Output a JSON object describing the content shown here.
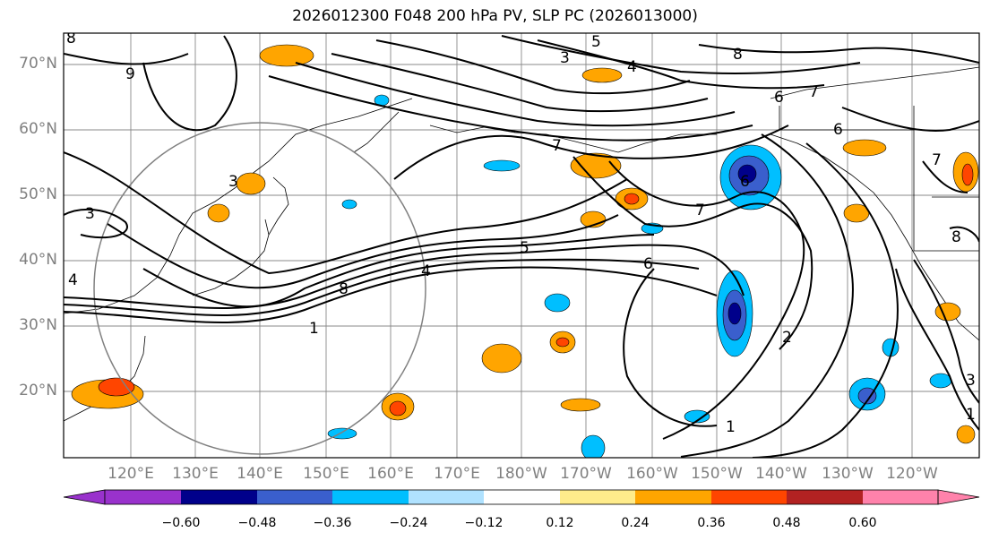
{
  "title": "2026012300 F048 200 hPa PV, SLP PC (2026013000)",
  "colors": {
    "background": "#ffffff",
    "frame": "#000000",
    "grid": "#888888",
    "contour": "#000000",
    "circle": "#808080",
    "orange_fill": "#ffa500",
    "red_fill": "#ff4500",
    "cyan_fill": "#00bfff",
    "blue_fill": "#3a5fcd",
    "navy_fill": "#00008b"
  },
  "latitude_labels": [
    "70°N",
    "60°N",
    "50°N",
    "40°N",
    "30°N",
    "20°N"
  ],
  "longitude_labels": [
    "120°E",
    "130°E",
    "140°E",
    "150°E",
    "160°E",
    "170°E",
    "180°W",
    "170°W",
    "160°W",
    "150°W",
    "140°W",
    "130°W",
    "120°W"
  ],
  "contour_labels": [
    "9",
    "3",
    "3",
    "5",
    "4",
    "8",
    "8",
    "7",
    "6",
    "6",
    "7",
    "7",
    "3",
    "5",
    "4",
    "8",
    "1",
    "6",
    "6",
    "7",
    "2",
    "1",
    "3",
    "1",
    "8",
    "4"
  ],
  "colorbar": {
    "ticks": [
      "−0.60",
      "−0.48",
      "−0.36",
      "−0.24",
      "−0.12",
      "0.12",
      "0.24",
      "0.36",
      "0.48",
      "0.60"
    ],
    "colors": [
      "#9932cc",
      "#00008b",
      "#3a5fcd",
      "#00bfff",
      "#b0e2ff",
      "#ffffff",
      "#ffec8b",
      "#ffa500",
      "#ff4500",
      "#b22222",
      "#ff82ab"
    ]
  }
}
